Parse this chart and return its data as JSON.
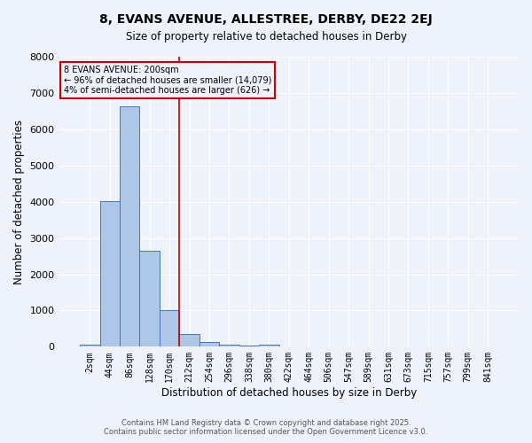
{
  "title1": "8, EVANS AVENUE, ALLESTREE, DERBY, DE22 2EJ",
  "title2": "Size of property relative to detached houses in Derby",
  "xlabel": "Distribution of detached houses by size in Derby",
  "ylabel": "Number of detached properties",
  "bar_labels": [
    "2sqm",
    "44sqm",
    "86sqm",
    "128sqm",
    "170sqm",
    "212sqm",
    "254sqm",
    "296sqm",
    "338sqm",
    "380sqm",
    "422sqm",
    "464sqm",
    "506sqm",
    "547sqm",
    "589sqm",
    "631sqm",
    "673sqm",
    "715sqm",
    "757sqm",
    "799sqm",
    "841sqm"
  ],
  "bar_values": [
    50,
    4020,
    6620,
    2650,
    1000,
    350,
    130,
    60,
    30,
    60,
    0,
    0,
    0,
    0,
    0,
    0,
    0,
    0,
    0,
    0,
    0
  ],
  "bar_color": "#aec6e8",
  "bar_edge_color": "#4472c4",
  "property_line_color": "#cc0000",
  "annotation_line1": "8 EVANS AVENUE: 200sqm",
  "annotation_line2": "← 96% of detached houses are smaller (14,079)",
  "annotation_line3": "4% of semi-detached houses are larger (626) →",
  "annotation_box_color": "#cc0000",
  "annotation_text_color": "#000000",
  "ylim": [
    0,
    8000
  ],
  "yticks": [
    0,
    1000,
    2000,
    3000,
    4000,
    5000,
    6000,
    7000,
    8000
  ],
  "bg_color": "#eef2fb",
  "grid_color": "#ffffff",
  "footer1": "Contains HM Land Registry data © Crown copyright and database right 2025.",
  "footer2": "Contains public sector information licensed under the Open Government Licence v3.0."
}
